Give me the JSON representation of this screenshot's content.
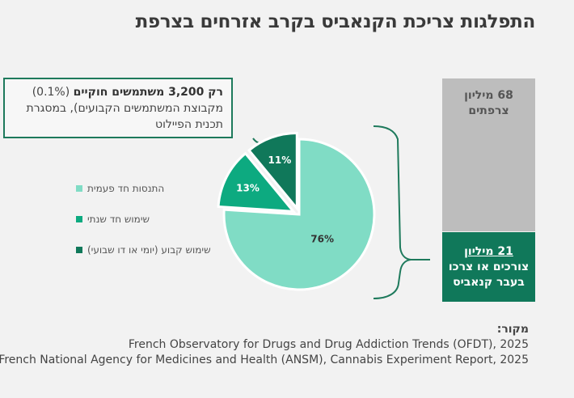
{
  "title": "התפלגות צריכת הקנאביס בקרב אזרחים בצרפת",
  "callout": {
    "bold": "רק 3,200 משתמשים חוקיים",
    "rest": " (0.1%) מקבוצת המשתמשים הקבועים), במסגרת תכנית הפיילוט"
  },
  "legend": [
    {
      "label": "התנסות חד פעמית",
      "color": "#80dcc5"
    },
    {
      "label": "שימוש חד שנתי",
      "color": "#0daa80"
    },
    {
      "label": "שימוש קבוע (יומי או דו שבועי)",
      "color": "#10785a"
    }
  ],
  "bars": {
    "top": {
      "line1": "68 מיליון",
      "line2": "צרפתים",
      "color": "#bdbdbd"
    },
    "bottom": {
      "line1": "21 מיליון",
      "line2": "צורכים או צרכו",
      "line3": "בעבר קנאביס",
      "color": "#10785a"
    }
  },
  "source": {
    "label": "מקור:",
    "line1": "French Observatory for Drugs and Drug Addiction Trends (OFDT), 2025",
    "line2": "French National Agency for Medicines and Health (ANSM), Cannabis Experiment Report, 2025"
  },
  "chart_data": {
    "type": "pie",
    "series": [
      {
        "name": "התנסות חד פעמית",
        "value": 76,
        "label": "76%",
        "color": "#80dcc5"
      },
      {
        "name": "שימוש חד שנתי",
        "value": 13,
        "label": "13%",
        "color": "#0daa80"
      },
      {
        "name": "שימוש קבוע (יומי או דו שבועי)",
        "value": 11,
        "label": "11%",
        "color": "#10785a"
      }
    ]
  }
}
